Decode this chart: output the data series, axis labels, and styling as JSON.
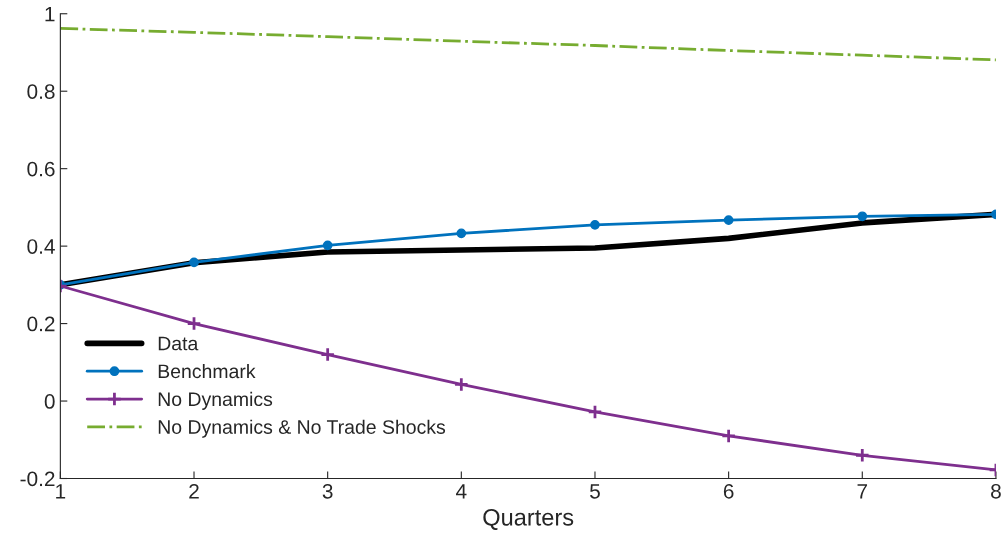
{
  "chart_data": {
    "type": "line",
    "xlabel": "Quarters",
    "x": [
      1,
      2,
      3,
      4,
      5,
      6,
      7,
      8
    ],
    "series": [
      {
        "name": "Data",
        "color": "#000000",
        "marker": "none",
        "line_style": "solid",
        "values": [
          0.3,
          0.357,
          0.385,
          0.39,
          0.395,
          0.42,
          0.46,
          0.482
        ]
      },
      {
        "name": "Benchmark",
        "color": "#0072bd",
        "marker": "circle",
        "line_style": "solid",
        "values": [
          0.3,
          0.358,
          0.402,
          0.433,
          0.455,
          0.467,
          0.477,
          0.482
        ]
      },
      {
        "name": "No Dynamics",
        "color": "#7e2f8e",
        "marker": "cross",
        "line_style": "solid",
        "values": [
          0.297,
          0.2,
          0.12,
          0.043,
          -0.028,
          -0.09,
          -0.14,
          -0.178
        ]
      },
      {
        "name": "No Dynamics & No Trade Shocks",
        "color": "#77ac30",
        "marker": "none",
        "line_style": "dashdot",
        "values": [
          0.962,
          0.952,
          0.941,
          0.929,
          0.918,
          0.905,
          0.893,
          0.881
        ]
      }
    ],
    "xlim": [
      1,
      8
    ],
    "xticks": [
      1,
      2,
      3,
      4,
      5,
      6,
      7,
      8
    ],
    "ylim": [
      -0.2,
      1
    ],
    "yticks": [
      -0.2,
      0,
      0.2,
      0.4,
      0.6,
      0.8,
      1
    ],
    "grid": false,
    "legend": "bottom left"
  }
}
